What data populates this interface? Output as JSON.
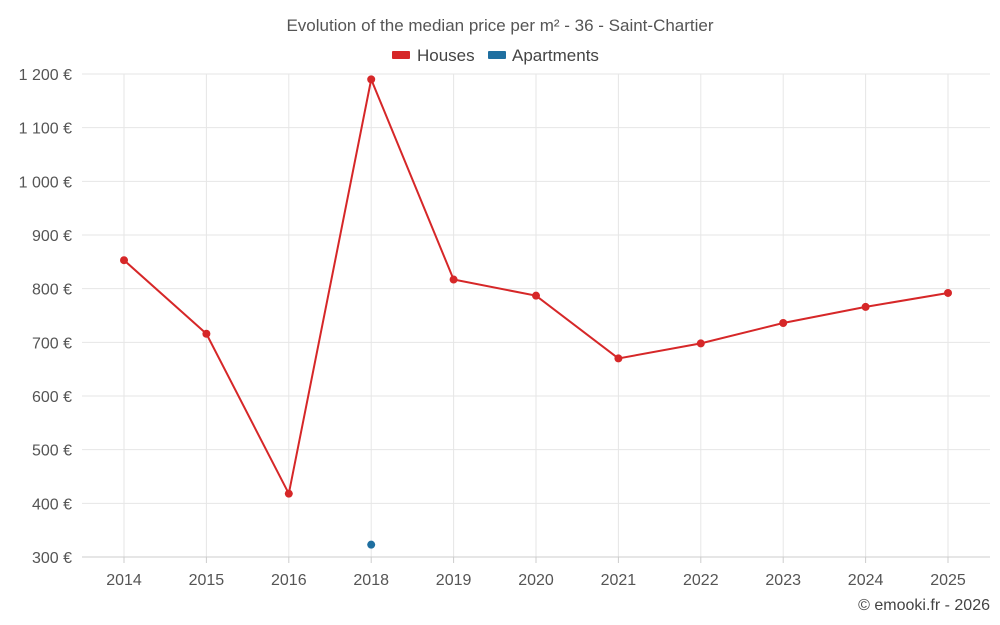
{
  "chart_data": {
    "type": "line",
    "title": "Evolution of the median price per m² - 36 - Saint-Chartier",
    "categories": [
      "2014",
      "2015",
      "2016",
      "2018",
      "2019",
      "2020",
      "2021",
      "2022",
      "2023",
      "2024",
      "2025"
    ],
    "y_ticks": [
      "300 €",
      "400 €",
      "500 €",
      "600 €",
      "700 €",
      "800 €",
      "900 €",
      "1 000 €",
      "1 100 €",
      "1 200 €"
    ],
    "ylim": [
      300,
      1200
    ],
    "series": [
      {
        "name": "Houses",
        "color": "#d62728",
        "values": [
          853,
          716,
          418,
          1190,
          817,
          787,
          670,
          698,
          736,
          766,
          792
        ]
      },
      {
        "name": "Apartments",
        "color": "#1f6fa0",
        "values": [
          null,
          null,
          null,
          323,
          null,
          null,
          null,
          null,
          null,
          null,
          null
        ]
      }
    ],
    "credit": "© emooki.fr - 2026"
  }
}
